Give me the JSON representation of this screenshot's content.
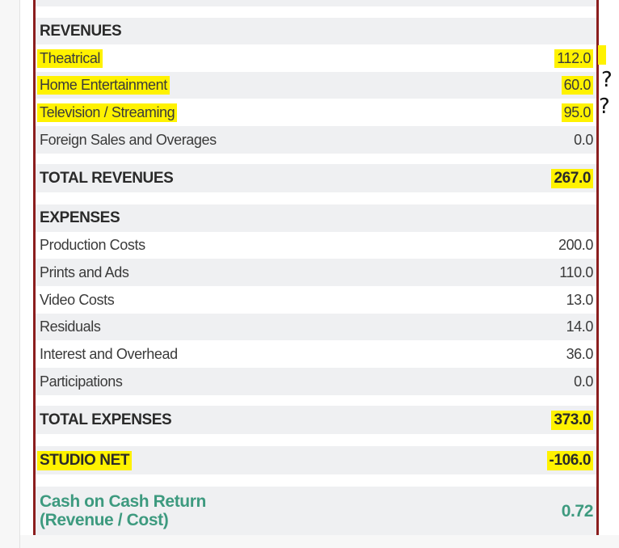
{
  "revenues": {
    "header": "REVENUES",
    "items": [
      {
        "label": "Theatrical",
        "value": "112.0"
      },
      {
        "label": "Home Entertainment",
        "value": "60.0"
      },
      {
        "label": "Television / Streaming",
        "value": "95.0"
      },
      {
        "label": "Foreign Sales and Overages",
        "value": "0.0"
      }
    ],
    "total_label": "TOTAL REVENUES",
    "total_value": "267.0"
  },
  "expenses": {
    "header": "EXPENSES",
    "items": [
      {
        "label": "Production Costs",
        "value": "200.0"
      },
      {
        "label": "Prints and Ads",
        "value": "110.0"
      },
      {
        "label": "Video Costs",
        "value": "13.0"
      },
      {
        "label": "Residuals",
        "value": "14.0"
      },
      {
        "label": "Interest and Overhead",
        "value": "36.0"
      },
      {
        "label": "Participations",
        "value": "0.0"
      }
    ],
    "total_label": "TOTAL EXPENSES",
    "total_value": "373.0"
  },
  "studio_net": {
    "label": "STUDIO NET",
    "value": "-106.0"
  },
  "cash_return": {
    "label_line1": "Cash on Cash Return",
    "label_line2": "(Revenue / Cost)",
    "value": "0.72"
  },
  "annotations": {
    "q1": "?",
    "q2": "?"
  },
  "colors": {
    "highlight": "#fff200",
    "border": "#8b1e1e",
    "accent": "#3d9a7f"
  }
}
